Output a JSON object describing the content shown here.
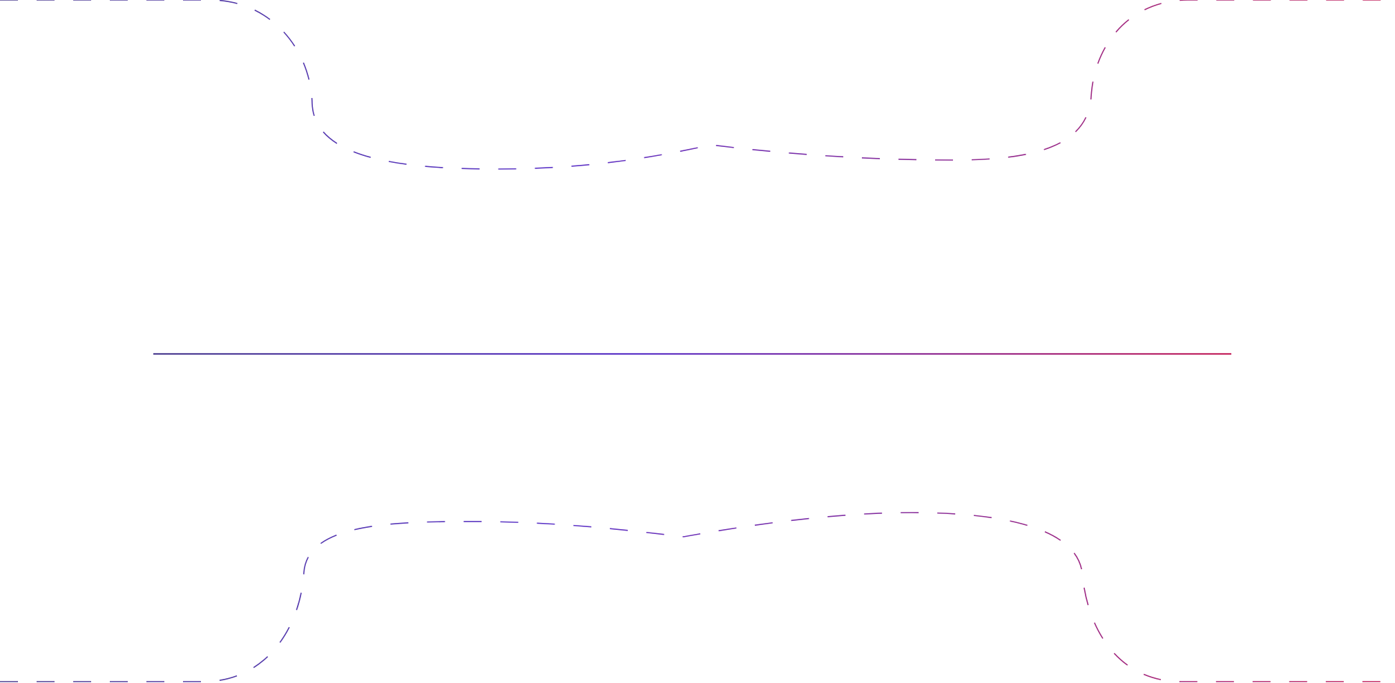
{
  "decoration": {
    "type": "abstract-line-art",
    "gradient_colors": {
      "start": "#4b3d8f",
      "mid": "#5a32c8",
      "end": "#c4215a"
    },
    "elements": [
      {
        "kind": "dashed-curve",
        "name": "top-wave"
      },
      {
        "kind": "solid-line",
        "name": "center-rule"
      },
      {
        "kind": "dashed-curve",
        "name": "bottom-wave"
      }
    ]
  }
}
